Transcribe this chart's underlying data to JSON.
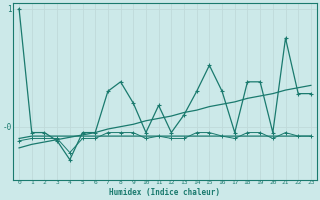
{
  "xlabel": "Humidex (Indice chaleur)",
  "x": [
    0,
    1,
    2,
    3,
    4,
    5,
    6,
    7,
    8,
    9,
    10,
    11,
    12,
    13,
    14,
    15,
    16,
    17,
    18,
    19,
    20,
    21,
    22,
    23
  ],
  "series_spiky": [
    1.0,
    -0.05,
    -0.05,
    -0.12,
    -0.28,
    -0.05,
    -0.05,
    0.3,
    0.38,
    0.2,
    -0.05,
    0.18,
    -0.05,
    0.1,
    0.3,
    0.52,
    0.3,
    -0.05,
    0.38,
    0.38,
    -0.05,
    0.75,
    0.28,
    0.28
  ],
  "series_diagonal": [
    -0.18,
    -0.15,
    -0.13,
    -0.11,
    -0.09,
    -0.07,
    -0.05,
    -0.02,
    0.0,
    0.02,
    0.05,
    0.07,
    0.09,
    0.12,
    0.14,
    0.17,
    0.19,
    0.21,
    0.24,
    0.26,
    0.28,
    0.31,
    0.33,
    0.35
  ],
  "series_flat": [
    -0.1,
    -0.08,
    -0.08,
    -0.08,
    -0.08,
    -0.08,
    -0.08,
    -0.08,
    -0.08,
    -0.08,
    -0.08,
    -0.08,
    -0.08,
    -0.08,
    -0.08,
    -0.08,
    -0.08,
    -0.08,
    -0.08,
    -0.08,
    -0.08,
    -0.08,
    -0.08,
    -0.08
  ],
  "series_dotted": [
    -0.12,
    -0.1,
    -0.1,
    -0.1,
    -0.22,
    -0.1,
    -0.1,
    -0.05,
    -0.05,
    -0.05,
    -0.1,
    -0.08,
    -0.1,
    -0.1,
    -0.05,
    -0.05,
    -0.08,
    -0.1,
    -0.05,
    -0.05,
    -0.1,
    -0.05,
    -0.08,
    -0.08
  ],
  "ylim": [
    -0.45,
    1.05
  ],
  "xlim": [
    -0.5,
    23.5
  ],
  "bg_color": "#cce9e9",
  "line_color": "#1a7a6e",
  "grid_color": "#b8d8d8",
  "font_color": "#1a7a6e"
}
